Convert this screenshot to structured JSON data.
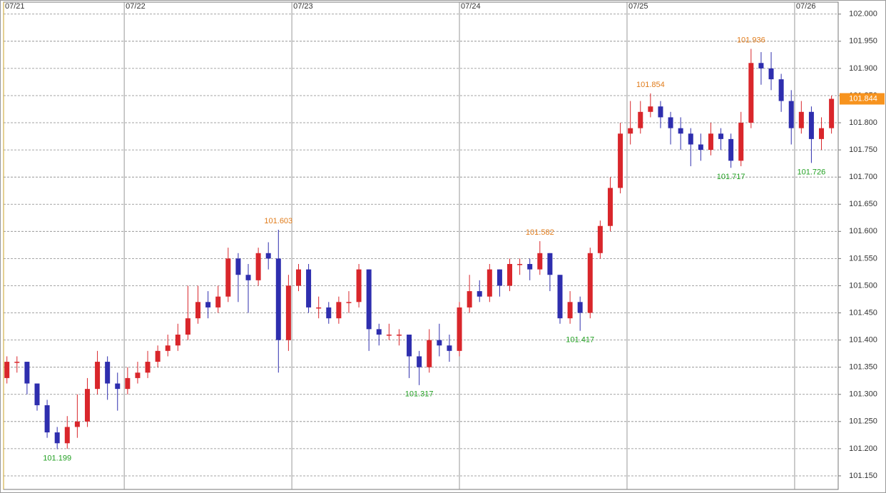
{
  "chart_data": {
    "type": "candlestick",
    "up_color": "#d9262b",
    "down_color": "#2e2eae",
    "high_label_color": "#e07b1a",
    "low_label_color": "#22a022",
    "price_tag_color": "#f7931e",
    "xlim": [
      0.28,
      5.26
    ],
    "xticks": [
      {
        "value": 0.28,
        "label": "07/21"
      },
      {
        "value": 1,
        "label": "07/22"
      },
      {
        "value": 2,
        "label": "07/23"
      },
      {
        "value": 3,
        "label": "07/24"
      },
      {
        "value": 4,
        "label": "07/25"
      },
      {
        "value": 5,
        "label": "07/26"
      }
    ],
    "ylim": [
      101.125,
      102.022
    ],
    "yticks": [
      {
        "value": 101.15,
        "label": "101.150"
      },
      {
        "value": 101.2,
        "label": "101.200"
      },
      {
        "value": 101.25,
        "label": "101.250"
      },
      {
        "value": 101.3,
        "label": "101.300"
      },
      {
        "value": 101.35,
        "label": "101.350"
      },
      {
        "value": 101.4,
        "label": "101.400"
      },
      {
        "value": 101.45,
        "label": "101.450"
      },
      {
        "value": 101.5,
        "label": "101.500"
      },
      {
        "value": 101.55,
        "label": "101.550"
      },
      {
        "value": 101.6,
        "label": "101.600"
      },
      {
        "value": 101.65,
        "label": "101.650"
      },
      {
        "value": 101.7,
        "label": "101.700"
      },
      {
        "value": 101.75,
        "label": "101.750"
      },
      {
        "value": 101.8,
        "label": "101.800"
      },
      {
        "value": 101.85,
        "label": "101.850"
      },
      {
        "value": 101.9,
        "label": "101.900"
      },
      {
        "value": 101.95,
        "label": "101.950"
      },
      {
        "value": 102,
        "label": "102.000"
      }
    ],
    "grid": true,
    "x": [
      0.3,
      0.36,
      0.42,
      0.48,
      0.54,
      0.6,
      0.66,
      0.72,
      0.78,
      0.84,
      0.9,
      0.96,
      1.02,
      1.08,
      1.14,
      1.2,
      1.26,
      1.32,
      1.38,
      1.44,
      1.5,
      1.56,
      1.62,
      1.68,
      1.74,
      1.8,
      1.86,
      1.92,
      1.98,
      2.04,
      2.1,
      2.16,
      2.22,
      2.28,
      2.34,
      2.4,
      2.46,
      2.52,
      2.58,
      2.64,
      2.7,
      2.76,
      2.82,
      2.88,
      2.94,
      3,
      3.06,
      3.12,
      3.18,
      3.24,
      3.3,
      3.36,
      3.42,
      3.48,
      3.54,
      3.6,
      3.66,
      3.72,
      3.78,
      3.84,
      3.9,
      3.96,
      4.02,
      4.08,
      4.14,
      4.2,
      4.26,
      4.32,
      4.38,
      4.44,
      4.5,
      4.56,
      4.62,
      4.68,
      4.74,
      4.8,
      4.86,
      4.92,
      4.98,
      5.04,
      5.1,
      5.16,
      5.22
    ],
    "open": [
      101.33,
      101.36,
      101.36,
      101.32,
      101.28,
      101.23,
      101.21,
      101.24,
      101.25,
      101.31,
      101.36,
      101.32,
      101.31,
      101.33,
      101.34,
      101.36,
      101.38,
      101.39,
      101.41,
      101.44,
      101.47,
      101.46,
      101.48,
      101.55,
      101.52,
      101.51,
      101.56,
      101.55,
      101.4,
      101.5,
      101.53,
      101.46,
      101.46,
      101.44,
      101.47,
      101.47,
      101.53,
      101.42,
      101.41,
      101.41,
      101.41,
      101.37,
      101.35,
      101.4,
      101.39,
      101.38,
      101.46,
      101.49,
      101.48,
      101.53,
      101.5,
      101.54,
      101.54,
      101.53,
      101.56,
      101.52,
      101.44,
      101.47,
      101.45,
      101.56,
      101.61,
      101.68,
      101.78,
      101.79,
      101.82,
      101.83,
      101.81,
      101.79,
      101.78,
      101.76,
      101.75,
      101.78,
      101.77,
      101.73,
      101.8,
      101.91,
      101.9,
      101.88,
      101.84,
      101.79,
      101.82,
      101.77,
      101.79
    ],
    "high": [
      101.37,
      101.37,
      101.36,
      101.32,
      101.29,
      101.24,
      101.26,
      101.3,
      101.33,
      101.38,
      101.37,
      101.34,
      101.35,
      101.36,
      101.38,
      101.39,
      101.41,
      101.43,
      101.5,
      101.5,
      101.49,
      101.5,
      101.57,
      101.56,
      101.54,
      101.57,
      101.58,
      101.603,
      101.52,
      101.54,
      101.54,
      101.48,
      101.47,
      101.48,
      101.49,
      101.54,
      101.53,
      101.43,
      101.43,
      101.42,
      101.41,
      101.38,
      101.42,
      101.43,
      101.41,
      101.47,
      101.52,
      101.51,
      101.54,
      101.53,
      101.55,
      101.55,
      101.55,
      101.582,
      101.56,
      101.52,
      101.49,
      101.48,
      101.57,
      101.62,
      101.7,
      101.8,
      101.84,
      101.84,
      101.854,
      101.84,
      101.82,
      101.81,
      101.79,
      101.78,
      101.8,
      101.79,
      101.78,
      101.82,
      101.936,
      101.93,
      101.93,
      101.89,
      101.86,
      101.84,
      101.83,
      101.81,
      101.85
    ],
    "low": [
      101.32,
      101.34,
      101.3,
      101.27,
      101.22,
      101.199,
      101.2,
      101.22,
      101.24,
      101.3,
      101.29,
      101.27,
      101.3,
      101.32,
      101.33,
      101.35,
      101.37,
      101.38,
      101.4,
      101.43,
      101.44,
      101.45,
      101.47,
      101.47,
      101.45,
      101.5,
      101.53,
      101.34,
      101.38,
      101.49,
      101.45,
      101.44,
      101.43,
      101.43,
      101.45,
      101.46,
      101.38,
      101.39,
      101.4,
      101.39,
      101.33,
      101.317,
      101.34,
      101.37,
      101.36,
      101.37,
      101.45,
      101.47,
      101.47,
      101.48,
      101.49,
      101.52,
      101.51,
      101.52,
      101.49,
      101.43,
      101.43,
      101.417,
      101.44,
      101.55,
      101.6,
      101.67,
      101.76,
      101.78,
      101.81,
      101.79,
      101.76,
      101.75,
      101.72,
      101.73,
      101.74,
      101.75,
      101.717,
      101.72,
      101.79,
      101.87,
      101.86,
      101.82,
      101.76,
      101.78,
      101.726,
      101.75,
      101.78
    ],
    "close": [
      101.36,
      101.36,
      101.32,
      101.28,
      101.23,
      101.21,
      101.24,
      101.25,
      101.31,
      101.36,
      101.32,
      101.31,
      101.33,
      101.34,
      101.36,
      101.38,
      101.39,
      101.41,
      101.44,
      101.47,
      101.46,
      101.48,
      101.55,
      101.52,
      101.51,
      101.56,
      101.55,
      101.4,
      101.5,
      101.53,
      101.46,
      101.46,
      101.44,
      101.47,
      101.47,
      101.53,
      101.42,
      101.41,
      101.41,
      101.41,
      101.37,
      101.35,
      101.4,
      101.39,
      101.38,
      101.46,
      101.49,
      101.48,
      101.53,
      101.5,
      101.54,
      101.54,
      101.53,
      101.56,
      101.52,
      101.44,
      101.47,
      101.45,
      101.56,
      101.61,
      101.68,
      101.78,
      101.79,
      101.82,
      101.83,
      101.81,
      101.79,
      101.78,
      101.76,
      101.75,
      101.78,
      101.77,
      101.73,
      101.8,
      101.91,
      101.9,
      101.88,
      101.84,
      101.79,
      101.82,
      101.77,
      101.79,
      101.844
    ],
    "high_labels": [
      {
        "x": 1.92,
        "y": 101.603
      },
      {
        "x": 3.48,
        "y": 101.582
      },
      {
        "x": 4.14,
        "y": 101.854
      },
      {
        "x": 4.74,
        "y": 101.936
      }
    ],
    "low_labels": [
      {
        "x": 0.6,
        "y": 101.199
      },
      {
        "x": 2.76,
        "y": 101.317
      },
      {
        "x": 3.72,
        "y": 101.417
      },
      {
        "x": 4.62,
        "y": 101.717
      },
      {
        "x": 5.1,
        "y": 101.726
      }
    ]
  }
}
